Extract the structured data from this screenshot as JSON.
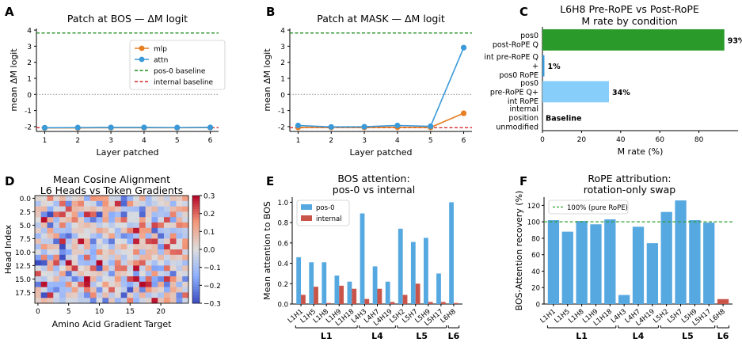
{
  "panel_letters": [
    "A",
    "B",
    "C",
    "D",
    "E",
    "F"
  ],
  "chart_data": [
    {
      "type": "line",
      "panel": "A",
      "title": "Patch at BOS — ΔM logit",
      "xlabel": "Layer patched",
      "ylabel": "mean ΔM logit",
      "x": [
        1,
        2,
        3,
        4,
        5,
        6
      ],
      "xlim": [
        0.75,
        6.25
      ],
      "ylim": [
        -2.3,
        4.1
      ],
      "yticks": [
        -2,
        -1,
        0,
        1,
        2,
        3,
        4
      ],
      "series": [
        {
          "name": "mlp",
          "color": "#e67e22",
          "values": [
            -2.08,
            -2.08,
            -2.07,
            -2.07,
            -2.07,
            -2.06
          ]
        },
        {
          "name": "attn",
          "color": "#3a9ad9",
          "values": [
            -2.07,
            -2.06,
            -2.05,
            -2.05,
            -2.06,
            -2.05
          ]
        }
      ],
      "baselines": [
        {
          "name": "pos-0 baseline",
          "color": "#1a8a1a",
          "value": 3.82
        },
        {
          "name": "internal baseline",
          "color": "#d62728",
          "value": -2.07
        }
      ],
      "zero_line": true,
      "legend": "upper-right"
    },
    {
      "type": "line",
      "panel": "B",
      "title": "Patch at MASK — ΔM logit",
      "xlabel": "Layer patched",
      "ylabel": "mean ΔM logit",
      "x": [
        1,
        2,
        3,
        4,
        5,
        6
      ],
      "xlim": [
        0.75,
        6.25
      ],
      "ylim": [
        -2.3,
        4.1
      ],
      "yticks": [
        -2,
        -1,
        0,
        1,
        2,
        3,
        4
      ],
      "series": [
        {
          "name": "mlp",
          "color": "#e67e22",
          "values": [
            -2.05,
            -2.05,
            -2.05,
            -2.04,
            -2.05,
            -1.17
          ]
        },
        {
          "name": "attn",
          "color": "#3a9ad9",
          "values": [
            -1.93,
            -2.02,
            -2.01,
            -1.93,
            -1.98,
            2.91
          ]
        }
      ],
      "baselines": [
        {
          "name": "pos-0 baseline",
          "color": "#1a8a1a",
          "value": 3.82
        },
        {
          "name": "internal baseline",
          "color": "#d62728",
          "value": -2.07
        }
      ],
      "zero_line": true
    },
    {
      "type": "bar",
      "orientation": "horizontal",
      "panel": "C",
      "title": "L6H8 Pre-RoPE vs Post-RoPE",
      "subtitle": "M rate by condition",
      "xlabel": "M rate (%)",
      "xlim": [
        0,
        100
      ],
      "xticks": [
        0,
        20,
        40,
        60,
        80
      ],
      "categories": [
        {
          "lines": [
            "pos0",
            "post-RoPE Q"
          ]
        },
        {
          "lines": [
            "int pre-RoPE Q",
            "+",
            "pos0 RoPE"
          ]
        },
        {
          "lines": [
            "pos0",
            "pre-RoPE Q+",
            "int RoPE"
          ]
        },
        {
          "lines": [
            "internal",
            "position",
            "unmodified"
          ]
        }
      ],
      "values": [
        93,
        1,
        34,
        0
      ],
      "value_labels": [
        "93%",
        "1%",
        "34%",
        "Baseline"
      ],
      "colors": [
        "#2a9a2a",
        "#3a9ad9",
        "#87cefa",
        "#ffffff"
      ]
    },
    {
      "type": "heatmap",
      "panel": "D",
      "title": "Mean Cosine Alignment",
      "subtitle": "L6 Heads vs Token Gradients",
      "xlabel": "Amino Acid Gradient Target",
      "ylabel": "Head Index",
      "rows": 20,
      "cols": 25,
      "xticks": [
        0,
        5,
        10,
        15,
        20
      ],
      "yticks": [
        "0.0",
        "2.5",
        "5.0",
        "7.5",
        "10.0",
        "12.5",
        "15.0",
        "17.5"
      ],
      "vmin": -0.3,
      "vmax": 0.3,
      "colorbar_ticks": [
        "0.3",
        "0.2",
        "0.1",
        "0.0",
        "−0.1",
        "−0.2",
        "−0.3"
      ],
      "cmap": "coolwarm"
    },
    {
      "type": "bar",
      "panel": "E",
      "title": "BOS attention:",
      "subtitle": "pos-0 vs internal",
      "ylabel": "Mean attention to BOS",
      "ylim": [
        0,
        1.05
      ],
      "yticks": [
        "0.0",
        "0.2",
        "0.4",
        "0.6",
        "0.8",
        "1.0"
      ],
      "categories": [
        "L1H1",
        "L1H5",
        "L1H8",
        "L1H9",
        "L1H18",
        "L4H3",
        "L4H7",
        "L4H19",
        "L5H2",
        "L5H7",
        "L5H9",
        "L5H17",
        "L6H8"
      ],
      "series": [
        {
          "name": "pos-0",
          "color": "#56a8e0",
          "values": [
            0.46,
            0.41,
            0.41,
            0.28,
            0.22,
            0.89,
            0.37,
            0.22,
            0.74,
            0.61,
            0.65,
            0.3,
            1.0
          ]
        },
        {
          "name": "internal",
          "color": "#c9544a",
          "values": [
            0.09,
            0.17,
            0.01,
            0.18,
            0.15,
            0.05,
            0.15,
            0.02,
            0.09,
            0.2,
            0.02,
            0.02,
            0.01
          ]
        }
      ],
      "groups": [
        {
          "label": "L1",
          "from": 0,
          "to": 4
        },
        {
          "label": "L4",
          "from": 5,
          "to": 7
        },
        {
          "label": "L5",
          "from": 8,
          "to": 11
        },
        {
          "label": "L6",
          "from": 12,
          "to": 12
        }
      ],
      "legend": "upper-left"
    },
    {
      "type": "bar",
      "panel": "F",
      "title": "RoPE attribution:",
      "subtitle": "rotation-only swap",
      "ylabel": "BOS-Attention recovery (%)",
      "ylim": [
        0,
        130
      ],
      "yticks": [
        0,
        20,
        40,
        60,
        80,
        100,
        120
      ],
      "categories": [
        "L1H1",
        "L1H5",
        "L1H8",
        "L1H9",
        "L1H18",
        "L4H3",
        "L4H7",
        "L4H19",
        "L5H2",
        "L5H7",
        "L5H9",
        "L5H17",
        "L6H8"
      ],
      "values": [
        102,
        88,
        101,
        97,
        103,
        11,
        94,
        74,
        112,
        126,
        102,
        99,
        6
      ],
      "colors": [
        "#56a8e0",
        "#56a8e0",
        "#56a8e0",
        "#56a8e0",
        "#56a8e0",
        "#56a8e0",
        "#56a8e0",
        "#56a8e0",
        "#56a8e0",
        "#56a8e0",
        "#56a8e0",
        "#56a8e0",
        "#c9544a"
      ],
      "reference": {
        "name": "100% (pure RoPE)",
        "value": 100,
        "color": "#2ca02c"
      },
      "groups": [
        {
          "label": "L1",
          "from": 0,
          "to": 4
        },
        {
          "label": "L4",
          "from": 5,
          "to": 7
        },
        {
          "label": "L5",
          "from": 8,
          "to": 11
        },
        {
          "label": "L6",
          "from": 12,
          "to": 12
        }
      ]
    }
  ]
}
